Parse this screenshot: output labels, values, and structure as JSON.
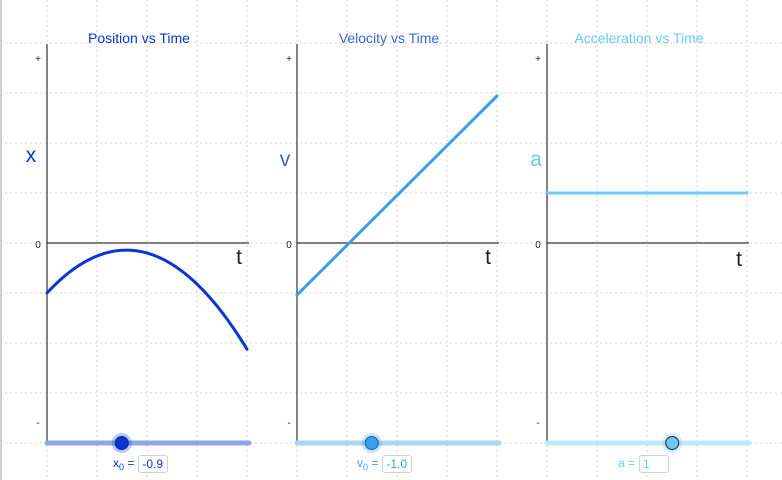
{
  "panels": [
    {
      "id": "position",
      "title": "Position vs Time",
      "ylabel": "x",
      "xlabel": "t",
      "tick_plus": "+",
      "tick_zero": "0",
      "tick_minus": "-",
      "color": "#0a35d6",
      "slider_color": "#8fa6ea",
      "slider_fraction": 0.37,
      "curve": "quadratic",
      "input": {
        "label": "x",
        "subscript": "0",
        "equals": "=",
        "value": "-0.9"
      }
    },
    {
      "id": "velocity",
      "title": "Velocity vs Time",
      "ylabel": "v",
      "xlabel": "t",
      "tick_plus": "+",
      "tick_zero": "0",
      "tick_minus": "-",
      "color": "#3d9fe6",
      "slider_color": "#aed4f4",
      "slider_fraction": 0.37,
      "curve": "linear",
      "input": {
        "label": "v",
        "subscript": "0",
        "equals": "=",
        "value": "-1.0"
      }
    },
    {
      "id": "acceleration",
      "title": "Acceleration vs Time",
      "ylabel": "a",
      "xlabel": "t",
      "tick_plus": "+",
      "tick_zero": "0",
      "tick_minus": "-",
      "color": "#6ccaf0",
      "slider_color": "#bfe8f8",
      "slider_fraction": 0.62,
      "curve": "constant",
      "input": {
        "label": "a",
        "subscript": "",
        "equals": "=",
        "value": "1"
      }
    }
  ]
}
